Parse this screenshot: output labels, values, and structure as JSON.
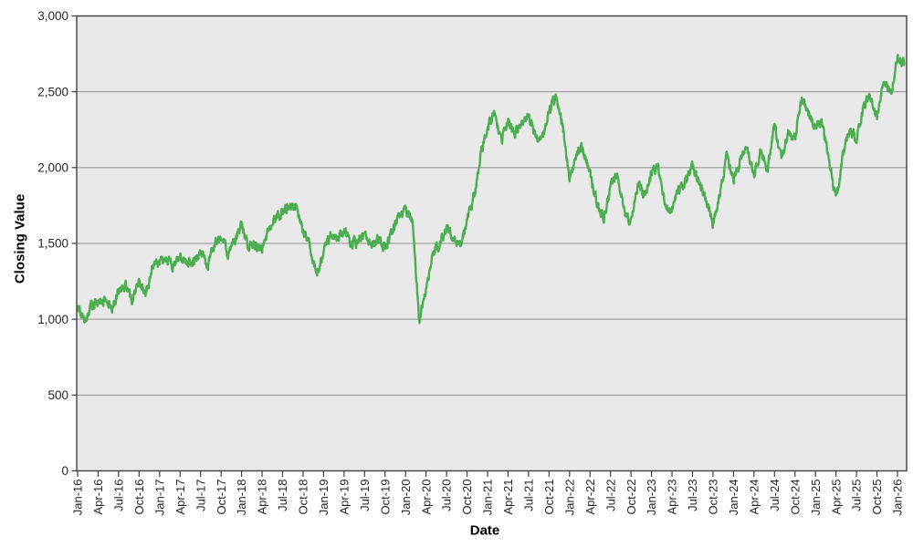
{
  "chart_data": {
    "type": "line",
    "title": "",
    "xlabel": "Date",
    "ylabel": "Closing Value",
    "ylim": [
      0,
      3000
    ],
    "yticks": [
      0,
      500,
      1000,
      1500,
      2000,
      2500,
      3000
    ],
    "ytick_labels": [
      "0",
      "500",
      "1,000",
      "1,500",
      "2,000",
      "2,500",
      "3,000"
    ],
    "xtick_labels": [
      "Jan-16",
      "Apr-16",
      "Jul-16",
      "Oct-16",
      "Jan-17",
      "Apr-17",
      "Jul-17",
      "Oct-17",
      "Jan-18",
      "Apr-18",
      "Jul-18",
      "Oct-18",
      "Jan-19",
      "Apr-19",
      "Jul-19",
      "Oct-19",
      "Jan-20",
      "Apr-20",
      "Jul-20",
      "Oct-20",
      "Jan-21",
      "Apr-21",
      "Jul-21",
      "Oct-21",
      "Jan-22",
      "Apr-22",
      "Jul-22",
      "Oct-22",
      "Jan-23",
      "Apr-23",
      "Jul-23",
      "Oct-23",
      "Jan-24",
      "Apr-24",
      "Jul-24",
      "Oct-24",
      "Jan-25",
      "Apr-25",
      "Jul-25",
      "Oct-25",
      "Jan-26"
    ],
    "grid": "horizontal",
    "legend_position": "none",
    "plot_bg": "#e9e9e9",
    "grid_color": "#909090",
    "border_color": "#3f3f3f",
    "tick_color": "#3f3f3f",
    "label_color": "#262626",
    "line_color": "#4cae50",
    "series": [
      {
        "name": "Closing Value",
        "x": [
          "Jan-16",
          "Feb-16",
          "Mar-16",
          "Apr-16",
          "May-16",
          "Jun-16",
          "Jul-16",
          "Aug-16",
          "Sep-16",
          "Oct-16",
          "Nov-16",
          "Dec-16",
          "Jan-17",
          "Feb-17",
          "Mar-17",
          "Apr-17",
          "May-17",
          "Jun-17",
          "Jul-17",
          "Aug-17",
          "Sep-17",
          "Oct-17",
          "Nov-17",
          "Dec-17",
          "Jan-18",
          "Feb-18",
          "Mar-18",
          "Apr-18",
          "May-18",
          "Jun-18",
          "Jul-18",
          "Aug-18",
          "Sep-18",
          "Oct-18",
          "Nov-18",
          "Dec-18",
          "Jan-19",
          "Feb-19",
          "Mar-19",
          "Apr-19",
          "May-19",
          "Jun-19",
          "Jul-19",
          "Aug-19",
          "Sep-19",
          "Oct-19",
          "Nov-19",
          "Dec-19",
          "Jan-20",
          "Feb-20",
          "Mar-20",
          "Apr-20",
          "May-20",
          "Jun-20",
          "Jul-20",
          "Aug-20",
          "Sep-20",
          "Oct-20",
          "Nov-20",
          "Dec-20",
          "Jan-21",
          "Feb-21",
          "Mar-21",
          "Apr-21",
          "May-21",
          "Jun-21",
          "Jul-21",
          "Aug-21",
          "Sep-21",
          "Oct-21",
          "Nov-21",
          "Dec-21",
          "Jan-22",
          "Feb-22",
          "Mar-22",
          "Apr-22",
          "May-22",
          "Jun-22",
          "Jul-22",
          "Aug-22",
          "Sep-22",
          "Oct-22",
          "Nov-22",
          "Dec-22",
          "Jan-23",
          "Feb-23",
          "Mar-23",
          "Apr-23",
          "May-23",
          "Jun-23",
          "Jul-23",
          "Aug-23",
          "Sep-23",
          "Oct-23",
          "Nov-23",
          "Dec-23",
          "Jan-24",
          "Feb-24",
          "Mar-24",
          "Apr-24",
          "May-24",
          "Jun-24",
          "Jul-24",
          "Aug-24",
          "Sep-24",
          "Oct-24",
          "Nov-24",
          "Dec-24",
          "Jan-25",
          "Feb-25",
          "Mar-25",
          "Apr-25",
          "May-25",
          "Jun-25",
          "Jul-25",
          "Aug-25",
          "Sep-25",
          "Oct-25",
          "Nov-25",
          "Dec-25",
          "Jan-26",
          "Feb-26"
        ],
        "values": [
          1085,
          980,
          1090,
          1110,
          1140,
          1055,
          1180,
          1225,
          1125,
          1260,
          1155,
          1360,
          1370,
          1385,
          1360,
          1420,
          1380,
          1370,
          1440,
          1335,
          1500,
          1530,
          1445,
          1515,
          1630,
          1470,
          1490,
          1475,
          1590,
          1665,
          1715,
          1750,
          1740,
          1570,
          1480,
          1275,
          1455,
          1560,
          1515,
          1595,
          1490,
          1510,
          1560,
          1475,
          1540,
          1470,
          1590,
          1665,
          1720,
          1650,
          990,
          1200,
          1450,
          1500,
          1600,
          1545,
          1465,
          1660,
          1800,
          2080,
          2250,
          2380,
          2160,
          2310,
          2230,
          2285,
          2355,
          2200,
          2180,
          2380,
          2460,
          2280,
          1935,
          2090,
          2120,
          1950,
          1780,
          1670,
          1870,
          1970,
          1700,
          1645,
          1890,
          1805,
          1975,
          2010,
          1740,
          1720,
          1850,
          1910,
          2005,
          1900,
          1790,
          1625,
          1830,
          2080,
          1925,
          2040,
          2130,
          1945,
          2130,
          2000,
          2290,
          2050,
          2230,
          2200,
          2455,
          2350,
          2270,
          2300,
          2050,
          1770,
          2070,
          2260,
          2180,
          2400,
          2470,
          2320,
          2590,
          2480,
          2720,
          2690
        ]
      }
    ]
  }
}
